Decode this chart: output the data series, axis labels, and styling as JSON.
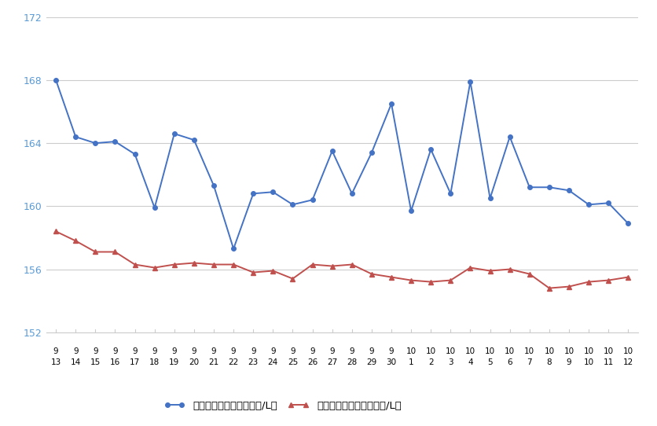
{
  "x_labels_top": [
    "9",
    "9",
    "9",
    "9",
    "9",
    "9",
    "9",
    "9",
    "9",
    "9",
    "9",
    "9",
    "9",
    "9",
    "9",
    "9",
    "9",
    "9",
    "10",
    "10",
    "10",
    "10",
    "10",
    "10",
    "10",
    "10",
    "10",
    "10",
    "10",
    "10"
  ],
  "x_labels_bot": [
    "13",
    "14",
    "15",
    "16",
    "17",
    "18",
    "19",
    "20",
    "21",
    "22",
    "23",
    "24",
    "25",
    "26",
    "27",
    "28",
    "29",
    "30",
    "1",
    "2",
    "3",
    "4",
    "5",
    "6",
    "7",
    "8",
    "9",
    "10",
    "11",
    "12"
  ],
  "blue_values": [
    168.0,
    164.4,
    164.0,
    164.1,
    163.3,
    159.9,
    164.6,
    164.2,
    161.3,
    157.3,
    160.8,
    160.9,
    160.1,
    160.4,
    163.5,
    160.8,
    163.4,
    166.5,
    159.7,
    163.6,
    160.8,
    167.9,
    160.5,
    164.4,
    161.2,
    161.2,
    161.0,
    160.1,
    160.2,
    158.9
  ],
  "red_values": [
    158.4,
    157.8,
    157.1,
    157.1,
    156.3,
    156.1,
    156.3,
    156.4,
    156.3,
    156.3,
    155.8,
    155.9,
    155.4,
    156.3,
    156.2,
    156.3,
    155.7,
    155.5,
    155.3,
    155.2,
    155.3,
    156.1,
    155.9,
    156.0,
    155.7,
    154.8,
    154.9,
    155.2,
    155.3,
    155.5
  ],
  "ylim": [
    152,
    172
  ],
  "yticks": [
    152,
    156,
    160,
    164,
    168,
    172
  ],
  "blue_color": "#4472C4",
  "red_color": "#C0504D",
  "blue_label": "レギュラー看板価格（円/L）",
  "red_label": "レギュラー実売価格（円/L）",
  "bg_color": "#ffffff",
  "grid_color": "#cccccc",
  "tick_color": "#5b9bd5",
  "marker_size": 4,
  "line_width": 1.4
}
